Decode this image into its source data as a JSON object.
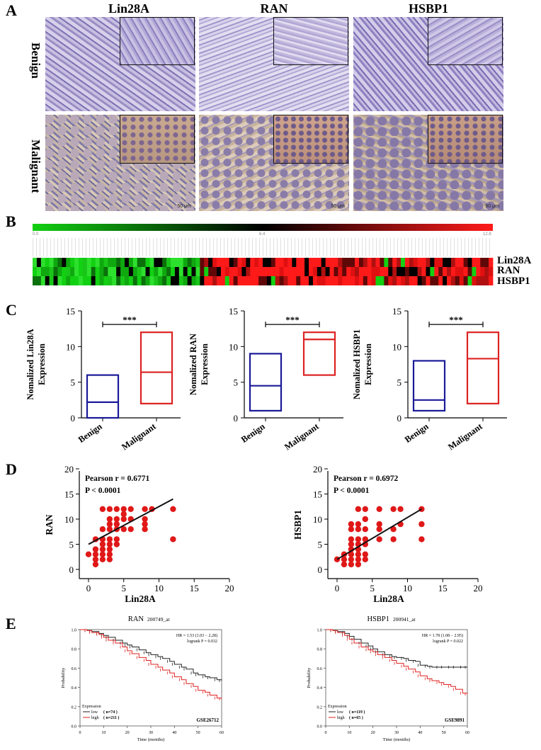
{
  "panels": {
    "A": {
      "letter": "A",
      "columns": [
        "Lin28A",
        "RAN",
        "HSBP1"
      ],
      "rows": [
        "Benign",
        "Malignant"
      ],
      "scale_label": "50 μm"
    },
    "B": {
      "letter": "B",
      "colorbar_ticks": [
        "0.0",
        "6.4",
        "12.8"
      ],
      "row_labels": [
        "Lin28A",
        "RAN",
        "HSBP1"
      ],
      "colors": {
        "low": "#12d012",
        "mid": "#000000",
        "high": "#ff1a1a"
      }
    },
    "C": {
      "letter": "C",
      "significance": "***",
      "xticklabels": [
        "Benign",
        "Malignant"
      ],
      "colors": {
        "benign": "#1a1a99",
        "malignant": "#dd2222"
      }
    },
    "D": {
      "letter": "D",
      "xlabel": "Lin28A",
      "colors": {
        "points": "#e01818",
        "line": "#111111"
      }
    },
    "E": {
      "letter": "E",
      "colors": {
        "low": "#222222",
        "high": "#e02020"
      }
    }
  },
  "chart_data": [
    {
      "id": "C1",
      "type": "box",
      "ylabel_line1": "Nomalized Lin28A",
      "ylabel_line2": "Expression",
      "categories": [
        "Benign",
        "Malignant"
      ],
      "boxes": [
        {
          "min": 0,
          "median": 2.2,
          "max": 6
        },
        {
          "min": 2,
          "median": 6.4,
          "max": 12
        }
      ],
      "ylim": [
        0,
        15
      ],
      "yticks": [
        "0",
        "5",
        "10",
        "15"
      ],
      "annotation": "***"
    },
    {
      "id": "C2",
      "type": "box",
      "ylabel_line1": "Nomalized RAN",
      "ylabel_line2": "Expression",
      "categories": [
        "Benign",
        "Malignant"
      ],
      "boxes": [
        {
          "min": 1,
          "median": 4.5,
          "max": 9
        },
        {
          "min": 6,
          "median": 11,
          "max": 12
        }
      ],
      "ylim": [
        0,
        15
      ],
      "yticks": [
        "0",
        "5",
        "10",
        "15"
      ],
      "annotation": "***"
    },
    {
      "id": "C3",
      "type": "box",
      "ylabel_line1": "Nomalized HSBP1",
      "ylabel_line2": "Expression",
      "categories": [
        "Benign",
        "Malignant"
      ],
      "boxes": [
        {
          "min": 1,
          "median": 2.5,
          "max": 8
        },
        {
          "min": 2,
          "median": 8.3,
          "max": 12
        }
      ],
      "ylim": [
        0,
        15
      ],
      "yticks": [
        "0",
        "5",
        "10",
        "15"
      ],
      "annotation": "***"
    },
    {
      "id": "D1",
      "type": "scatter",
      "xlabel": "Lin28A",
      "ylabel": "RAN",
      "stats_line1": "Pearson r  = 0.6771",
      "stats_line2": "P < 0.0001",
      "xlim": [
        0,
        20
      ],
      "ylim": [
        0,
        20
      ],
      "xticks": [
        "0",
        "5",
        "10",
        "15",
        "20"
      ],
      "yticks": [
        "0",
        "5",
        "10",
        "15",
        "20"
      ],
      "points": [
        [
          0,
          3
        ],
        [
          1,
          1
        ],
        [
          1,
          2
        ],
        [
          1,
          3
        ],
        [
          1,
          4
        ],
        [
          1,
          6
        ],
        [
          2,
          2
        ],
        [
          2,
          3
        ],
        [
          2,
          4
        ],
        [
          2,
          5
        ],
        [
          2,
          6
        ],
        [
          2,
          8
        ],
        [
          2,
          12
        ],
        [
          3,
          2
        ],
        [
          3,
          3
        ],
        [
          3,
          4
        ],
        [
          3,
          5
        ],
        [
          3,
          6
        ],
        [
          3,
          8
        ],
        [
          3,
          9
        ],
        [
          3,
          10
        ],
        [
          3,
          12
        ],
        [
          4,
          5
        ],
        [
          4,
          6
        ],
        [
          4,
          8
        ],
        [
          4,
          9
        ],
        [
          4,
          10
        ],
        [
          4,
          12
        ],
        [
          5,
          8
        ],
        [
          5,
          10
        ],
        [
          5,
          11
        ],
        [
          5,
          12
        ],
        [
          6,
          8
        ],
        [
          6,
          10
        ],
        [
          6,
          12
        ],
        [
          8,
          8
        ],
        [
          8,
          9
        ],
        [
          8,
          10
        ],
        [
          8,
          12
        ],
        [
          9,
          12
        ],
        [
          12,
          6
        ],
        [
          12,
          12
        ]
      ],
      "fit_line": [
        [
          0,
          5
        ],
        [
          12,
          14
        ]
      ]
    },
    {
      "id": "D2",
      "type": "scatter",
      "xlabel": "Lin28A",
      "ylabel": "HSBP1",
      "stats_line1": "Pearson r  = 0.6972",
      "stats_line2": "P < 0.0001",
      "xlim": [
        0,
        20
      ],
      "ylim": [
        0,
        20
      ],
      "xticks": [
        "0",
        "5",
        "10",
        "15",
        "20"
      ],
      "yticks": [
        "0",
        "5",
        "10",
        "15",
        "20"
      ],
      "points": [
        [
          0,
          2
        ],
        [
          1,
          1
        ],
        [
          1,
          2
        ],
        [
          1,
          3
        ],
        [
          2,
          1
        ],
        [
          2,
          2
        ],
        [
          2,
          3
        ],
        [
          2,
          4
        ],
        [
          2,
          5
        ],
        [
          2,
          6
        ],
        [
          2,
          8
        ],
        [
          2,
          9
        ],
        [
          3,
          1
        ],
        [
          3,
          2
        ],
        [
          3,
          3
        ],
        [
          3,
          4
        ],
        [
          3,
          5
        ],
        [
          3,
          6
        ],
        [
          3,
          8
        ],
        [
          3,
          9
        ],
        [
          3,
          12
        ],
        [
          4,
          2
        ],
        [
          4,
          3
        ],
        [
          4,
          5
        ],
        [
          4,
          6
        ],
        [
          4,
          8
        ],
        [
          4,
          10
        ],
        [
          4,
          12
        ],
        [
          6,
          6
        ],
        [
          6,
          8
        ],
        [
          6,
          9
        ],
        [
          6,
          12
        ],
        [
          8,
          6
        ],
        [
          8,
          8
        ],
        [
          8,
          12
        ],
        [
          9,
          9
        ],
        [
          9,
          12
        ],
        [
          12,
          6
        ],
        [
          12,
          9
        ],
        [
          12,
          12
        ]
      ],
      "fit_line": [
        [
          0,
          2
        ],
        [
          12,
          12
        ]
      ]
    },
    {
      "id": "E1",
      "type": "line",
      "title": "RAN",
      "probe": "200749_at",
      "hr_text": "HR = 1.53 (1.03 − 2.28)",
      "logrank_text": "logrank P = 0.032",
      "xlabel": "Time (months)",
      "ylabel": "Probability",
      "xlim": [
        0,
        60
      ],
      "ylim": [
        0,
        1
      ],
      "xticks": [
        "0",
        "10",
        "20",
        "30",
        "40",
        "50",
        "60"
      ],
      "yticks": [
        "0.0",
        "0.2",
        "0.4",
        "0.6",
        "0.8",
        "1.0"
      ],
      "legend_title": "Expression",
      "series": [
        {
          "name": "low",
          "n": "( n=74 )",
          "x": [
            0,
            3,
            5,
            8,
            10,
            12,
            15,
            18,
            20,
            22,
            25,
            28,
            30,
            33,
            35,
            38,
            40,
            43,
            45,
            48,
            50,
            53,
            55,
            58,
            60
          ],
          "y": [
            1.0,
            0.99,
            0.98,
            0.96,
            0.94,
            0.92,
            0.89,
            0.86,
            0.84,
            0.82,
            0.79,
            0.76,
            0.74,
            0.72,
            0.7,
            0.67,
            0.64,
            0.61,
            0.59,
            0.55,
            0.53,
            0.51,
            0.5,
            0.48,
            0.47
          ]
        },
        {
          "name": "high",
          "n": "( n=211 )",
          "x": [
            0,
            3,
            5,
            8,
            10,
            12,
            15,
            18,
            20,
            22,
            25,
            28,
            30,
            33,
            35,
            38,
            40,
            43,
            45,
            48,
            50,
            53,
            55,
            58,
            60
          ],
          "y": [
            1.0,
            0.99,
            0.97,
            0.95,
            0.92,
            0.89,
            0.86,
            0.82,
            0.78,
            0.75,
            0.71,
            0.68,
            0.64,
            0.61,
            0.58,
            0.55,
            0.51,
            0.48,
            0.44,
            0.41,
            0.37,
            0.35,
            0.32,
            0.29,
            0.28
          ]
        }
      ],
      "dataset": "GSE26712"
    },
    {
      "id": "E2",
      "type": "line",
      "title": "HSBP1",
      "probe": "200941_at",
      "hr_text": "HR = 1.78 (1.08 − 2.95)",
      "logrank_text": "logrank P = 0.022",
      "xlabel": "Time (months)",
      "ylabel": "Probability",
      "xlim": [
        0,
        60
      ],
      "ylim": [
        0,
        1
      ],
      "xticks": [
        "0",
        "10",
        "20",
        "30",
        "40",
        "50",
        "60"
      ],
      "yticks": [
        "0.0",
        "0.2",
        "0.4",
        "0.6",
        "0.8",
        "1.0"
      ],
      "legend_title": "Expression",
      "series": [
        {
          "name": "low",
          "n": "( n=119 )",
          "x": [
            0,
            3,
            5,
            8,
            10,
            12,
            15,
            18,
            20,
            22,
            25,
            28,
            30,
            33,
            35,
            38,
            40,
            43,
            45,
            48,
            50,
            53,
            55,
            58,
            60
          ],
          "y": [
            1.0,
            0.99,
            0.98,
            0.96,
            0.93,
            0.9,
            0.86,
            0.83,
            0.8,
            0.77,
            0.74,
            0.72,
            0.71,
            0.7,
            0.68,
            0.67,
            0.63,
            0.62,
            0.61,
            0.61,
            0.61,
            0.61,
            0.61,
            0.61,
            0.61
          ]
        },
        {
          "name": "high",
          "n": "( n=65 )",
          "x": [
            0,
            3,
            5,
            8,
            10,
            12,
            15,
            18,
            20,
            22,
            25,
            28,
            30,
            33,
            35,
            38,
            40,
            43,
            45,
            48,
            50,
            53,
            55,
            58,
            60
          ],
          "y": [
            1.0,
            0.99,
            0.97,
            0.94,
            0.9,
            0.86,
            0.82,
            0.79,
            0.77,
            0.74,
            0.71,
            0.68,
            0.65,
            0.62,
            0.59,
            0.56,
            0.52,
            0.49,
            0.47,
            0.45,
            0.43,
            0.41,
            0.38,
            0.34,
            0.33
          ]
        }
      ],
      "dataset": "GSE9891"
    }
  ]
}
